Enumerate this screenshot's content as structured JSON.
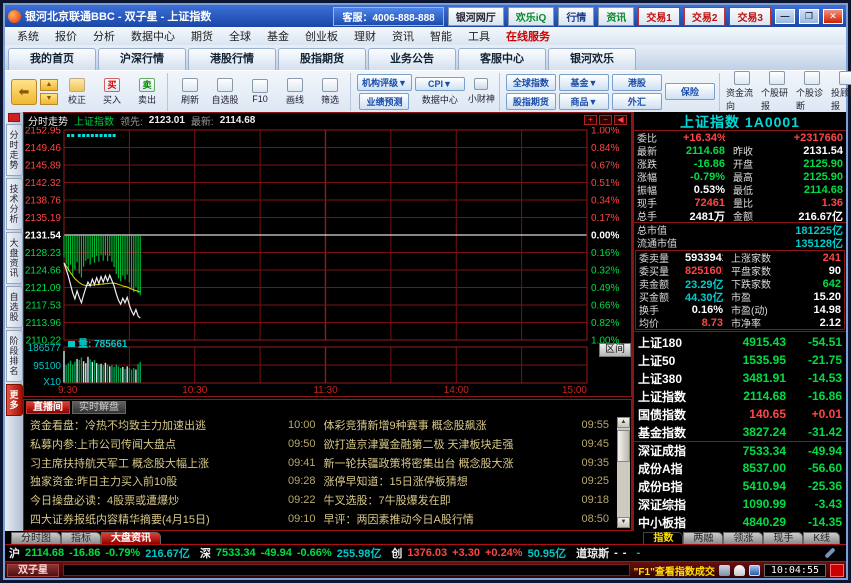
{
  "colors": {
    "red": "#ff4545",
    "green": "#00dd44",
    "white": "#ffffff",
    "cyan": "#00cccc",
    "yellow": "#ffff00"
  },
  "titlebar": {
    "title": "银河北京联通BBC - 双子星 - 上证指数",
    "phone": "客服：4006-888-888",
    "portal": "银河网厅",
    "im": "欢乐iQ",
    "quote_btn": "行情",
    "news_btn": "资讯",
    "trade_btns": [
      "交易1",
      "交易2",
      "交易3"
    ],
    "min": "—",
    "restore": "❐",
    "close": "✕"
  },
  "menu": {
    "items": [
      "系统",
      "报价",
      "分析",
      "数据中心",
      "期货",
      "全球",
      "基金",
      "创业板",
      "理财",
      "资讯",
      "智能",
      "工具",
      "在线服务"
    ]
  },
  "page_tabs": [
    "我的首页",
    "沪深行情",
    "港股行情",
    "股指期货",
    "业务公告",
    "客服中心",
    "银河欢乐"
  ],
  "toolbar": {
    "trade": [
      "校正",
      "买入",
      "卖出"
    ],
    "trade_ic": [
      "⇪",
      "买",
      "卖"
    ],
    "tools": [
      "刷新",
      "自选股",
      "F10",
      "画线",
      "筛选"
    ],
    "blue1": [
      "机构评级▼",
      "业绩预测"
    ],
    "blue2": [
      "CPI▼"
    ],
    "labels2": [
      "数据中心",
      "小财神"
    ],
    "blue3": [
      "全球指数",
      "股指期货"
    ],
    "blue4": [
      "基金▼",
      "商品▼"
    ],
    "blue5": [
      "港股",
      "外汇"
    ],
    "blue6": [
      "保险"
    ],
    "right_tools": [
      "资金流向",
      "个股研报",
      "个股诊断",
      "投顾播报"
    ]
  },
  "left_tabs": [
    "分时走势",
    "技术分析",
    "大盘资讯",
    "自选股",
    "阶段排名",
    "更多"
  ],
  "chart_header": {
    "mode": "分时走势",
    "index": "上证指数",
    "lead_label": "领先:",
    "lead": "2123.01",
    "latest_label": "最新:",
    "latest": "2114.68"
  },
  "range_button": "区间",
  "chart_data": {
    "type": "line",
    "title": "上证指数 分时走势",
    "prev_close": 2131.54,
    "open": 2125.9,
    "high": 2125.9,
    "low": 2114.68,
    "latest": 2114.68,
    "total_minutes": 240,
    "x_ticks": [
      {
        "m": 0,
        "label": "9:30"
      },
      {
        "m": 60,
        "label": "10:30"
      },
      {
        "m": 120,
        "label": "11:30"
      },
      {
        "m": 180,
        "label": "14:00"
      },
      {
        "m": 240,
        "label": "15:00"
      }
    ],
    "y_left": [
      "2152.95",
      "2149.46",
      "2145.89",
      "2142.32",
      "2138.76",
      "2135.19",
      "2131.54",
      "2128.23",
      "2124.66",
      "2121.09",
      "2117.53",
      "2113.96",
      "2110.22"
    ],
    "y_right": [
      "1.00%",
      "0.84%",
      "0.67%",
      "0.51%",
      "0.34%",
      "0.17%",
      "0.00%",
      "0.16%",
      "0.32%",
      "0.49%",
      "0.66%",
      "0.82%",
      "1.00%"
    ],
    "price_range": [
      2110.22,
      2152.95
    ],
    "price": [
      2125.9,
      2124.6,
      2123.2,
      2121.5,
      2119.8,
      2118.6,
      2120.2,
      2118.9,
      2117.8,
      2119.4,
      2120.8,
      2122.0,
      2121.2,
      2122.6,
      2121.5,
      2122.9,
      2121.7,
      2123.1,
      2122.0,
      2123.3,
      2122.2,
      2123.4,
      2122.3,
      2121.2,
      2119.6,
      2118.3,
      2117.5,
      2118.7,
      2117.8,
      2118.9,
      2117.3,
      2116.1,
      2115.3,
      2116.4,
      2115.1,
      2114.68
    ],
    "avg": [
      2125.9,
      2125.3,
      2124.6,
      2123.9,
      2123.3,
      2122.7,
      2122.3,
      2121.9,
      2121.6,
      2121.4,
      2121.3,
      2121.3,
      2121.3,
      2121.4,
      2121.4,
      2121.5,
      2121.5,
      2121.6,
      2121.6,
      2121.7,
      2121.7,
      2121.8,
      2121.8,
      2121.8,
      2121.7,
      2121.5,
      2121.4,
      2121.2,
      2121.1,
      2121.0,
      2120.8,
      2120.6,
      2120.4,
      2120.3,
      2120.1,
      2120.0
    ],
    "bars": [
      4.5,
      5.9,
      7.3,
      6.0,
      8.1,
      7.0,
      5.5,
      7.8,
      8.6,
      6.4,
      5.2,
      4.8,
      6.0,
      4.5,
      5.6,
      4.2,
      5.4,
      4.0,
      5.2,
      4.1,
      5.3,
      4.2,
      5.4,
      6.5,
      7.9,
      8.8,
      9.4,
      8.2,
      9.0,
      8.0,
      9.6,
      10.8,
      11.6,
      10.5,
      11.8,
      12.2
    ],
    "volume": [
      1.0,
      0.55,
      0.62,
      0.7,
      0.58,
      0.66,
      0.75,
      0.72,
      0.8,
      0.68,
      0.62,
      0.82,
      0.74,
      0.66,
      0.72,
      0.62,
      0.58,
      0.6,
      0.55,
      0.63,
      0.58,
      0.52,
      0.55,
      0.5,
      0.58,
      0.52,
      0.47,
      0.5,
      0.44,
      0.52,
      0.47,
      0.42,
      0.47,
      0.42,
      0.6,
      0.66
    ],
    "event_dots": [
      2,
      4,
      7,
      9,
      11,
      13,
      15,
      17,
      19,
      21,
      23
    ],
    "vol_label": "量: 785661",
    "vol_axis": [
      "186577",
      "95100",
      "X10"
    ]
  },
  "quote": {
    "title": "上证指数 1A0001",
    "rows": [
      {
        "l": "委比",
        "v": "+16.34%",
        "vc": "red",
        "l2": "",
        "v2": "+2317660",
        "vc2": "red"
      },
      {
        "l": "最新",
        "v": "2114.68",
        "vc": "green",
        "l2": "昨收",
        "v2": "2131.54",
        "vc2": "white"
      },
      {
        "l": "涨跌",
        "v": "-16.86",
        "vc": "green",
        "l2": "开盘",
        "v2": "2125.90",
        "vc2": "green"
      },
      {
        "l": "涨幅",
        "v": "-0.79%",
        "vc": "green",
        "l2": "最高",
        "v2": "2125.90",
        "vc2": "green"
      },
      {
        "l": "振幅",
        "v": "0.53%",
        "vc": "white",
        "l2": "最低",
        "v2": "2114.68",
        "vc2": "green"
      },
      {
        "l": "现手",
        "v": "72461",
        "vc": "red",
        "l2": "量比",
        "v2": "1.36",
        "vc2": "red"
      },
      {
        "l": "总手",
        "v": "2481万",
        "vc": "white",
        "l2": "金额",
        "v2": "216.67亿",
        "vc2": "white"
      }
    ],
    "caps": [
      {
        "l": "总市值",
        "v": "181225亿",
        "vc": "cyan"
      },
      {
        "l": "流通市值",
        "v": "135128亿",
        "vc": "cyan"
      }
    ],
    "orders": [
      {
        "l": "委卖量",
        "v": "5933941",
        "vc": "white",
        "l2": "上涨家数",
        "v2": "241",
        "vc2": "red"
      },
      {
        "l": "委买量",
        "v": "8251601",
        "vc": "red",
        "l2": "平盘家数",
        "v2": "90",
        "vc2": "white"
      },
      {
        "l": "卖金额",
        "v": "23.29亿",
        "vc": "cyan",
        "l2": "下跌家数",
        "v2": "642",
        "vc2": "green"
      },
      {
        "l": "买金额",
        "v": "44.30亿",
        "vc": "cyan",
        "l2": "市盈",
        "v2": "15.20",
        "vc2": "white"
      },
      {
        "l": "换手",
        "v": "0.16%",
        "vc": "white",
        "l2": "市盈(动)",
        "v2": "14.98",
        "vc2": "white"
      },
      {
        "l": "均价",
        "v": "8.73",
        "vc": "red",
        "l2": "市净率",
        "v2": "2.12",
        "vc2": "white"
      }
    ]
  },
  "indices": [
    {
      "name": "上证180",
      "price": "4915.43",
      "chg": "-54.51",
      "c": "green"
    },
    {
      "name": "上证50",
      "price": "1535.95",
      "chg": "-21.75",
      "c": "green"
    },
    {
      "name": "上证380",
      "price": "3481.91",
      "chg": "-14.53",
      "c": "green"
    },
    {
      "name": "上证指数",
      "price": "2114.68",
      "chg": "-16.86",
      "c": "green"
    },
    {
      "name": "国债指数",
      "price": "140.65",
      "chg": "+0.01",
      "c": "red"
    },
    {
      "name": "基金指数",
      "price": "3827.24",
      "chg": "-31.42",
      "c": "green"
    },
    {
      "name": "深证成指",
      "price": "7533.34",
      "chg": "-49.94",
      "c": "green"
    },
    {
      "name": "成份A指",
      "price": "8537.00",
      "chg": "-56.60",
      "c": "green"
    },
    {
      "name": "成份B指",
      "price": "5410.94",
      "chg": "-25.36",
      "c": "green"
    },
    {
      "name": "深证综指",
      "price": "1090.99",
      "chg": "-3.43",
      "c": "green"
    },
    {
      "name": "中小板指",
      "price": "4840.29",
      "chg": "-14.35",
      "c": "green"
    }
  ],
  "right_tabs": [
    "指数",
    "两融",
    "领涨",
    "现手",
    "K线"
  ],
  "news": {
    "tabs": [
      "直播间",
      "实时解盘"
    ],
    "left": [
      {
        "text": "资金看盘：冷热不均致主力加速出逃",
        "time": "10:00"
      },
      {
        "text": "私募内参:上市公司传闻大盘点",
        "time": "09:50"
      },
      {
        "text": "习主席扶持航天军工 概念股大幅上涨",
        "time": "09:41"
      },
      {
        "text": "独家资金:昨日主力买入前10股",
        "time": "09:28"
      },
      {
        "text": "今日操盘必读：4股票或遭爆炒",
        "time": "09:22"
      },
      {
        "text": "四大证券报纸内容精华摘要(4月15日)",
        "time": "09:10"
      }
    ],
    "right": [
      {
        "text": "体彩竞猜新增9种赛事 概念股飙涨",
        "time": "09:55"
      },
      {
        "text": "欲打造京津冀金融第二极 天津板块走强",
        "time": "09:45"
      },
      {
        "text": "新一轮扶疆政策将密集出台 概念股大涨",
        "time": "09:35"
      },
      {
        "text": "涨停早知道：15日涨停板猜想",
        "time": "09:25"
      },
      {
        "text": "牛叉选股：7牛股爆发在即",
        "time": "09:18"
      },
      {
        "text": "早评：两因素推动今日A股行情",
        "time": "08:50"
      }
    ]
  },
  "bottom_tabs": [
    "分时图",
    "指标",
    "大盘资讯"
  ],
  "status": {
    "markets": [
      {
        "label": "沪",
        "price": "2114.68",
        "chg": "-16.86",
        "pct": "-0.79%",
        "amt": "216.67亿",
        "c": "green"
      },
      {
        "label": "深",
        "price": "7533.34",
        "chg": "-49.94",
        "pct": "-0.66%",
        "amt": "255.98亿",
        "c": "green"
      },
      {
        "label": "创",
        "price": "1376.03",
        "chg": "+3.30",
        "pct": "+0.24%",
        "amt": "50.95亿",
        "c": "red"
      },
      {
        "label": "道琼斯",
        "price": "-",
        "chg": "-",
        "pct": "",
        "amt": "-",
        "c": "white"
      }
    ]
  },
  "taskbar": {
    "app": "双子星",
    "hint": "\"F1\"查看指数成交",
    "time": "10:04:55"
  }
}
